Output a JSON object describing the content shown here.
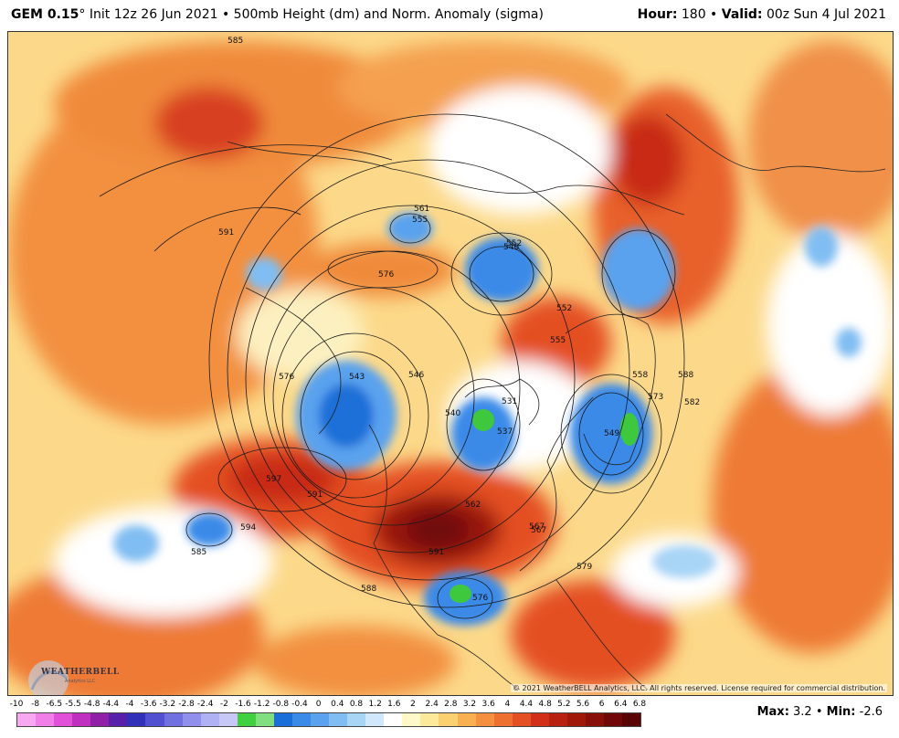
{
  "header": {
    "model": "GEM 0.15",
    "degree": "°",
    "init": " Init 12z 26 Jun 2021 • 500mb Height (dm) and Norm. Anomaly (sigma)",
    "hour_label": "Hour:",
    "hour_value": " 180 • ",
    "valid_label": "Valid:",
    "valid_value": " 00z Sun 4 Jul 2021"
  },
  "map": {
    "copyright": "© 2021 WeatherBELL Analytics, LLC. All rights reserved. License required for commercial distribution.",
    "logo_text": "WEATHERBELL",
    "logo_sub": "Analytics LLC",
    "contour_labels": [
      "585",
      "591",
      "576",
      "561",
      "555",
      "552",
      "546",
      "543",
      "549",
      "558",
      "573",
      "588",
      "597",
      "591",
      "594",
      "585",
      "576",
      "567",
      "562",
      "591",
      "579",
      "576",
      "588",
      "582",
      "540",
      "537",
      "531",
      "552",
      "555",
      "546",
      "567"
    ]
  },
  "legend": {
    "ticks": [
      "-10",
      "-8",
      "-6.5",
      "-5.5",
      "-4.8",
      "-4.4",
      "-4",
      "-3.6",
      "-3.2",
      "-2.8",
      "-2.4",
      "-2",
      "-1.6",
      "-1.2",
      "-0.8",
      "-0.4",
      "0",
      "0.4",
      "0.8",
      "1.2",
      "1.6",
      "2",
      "2.4",
      "2.8",
      "3.2",
      "3.6",
      "4",
      "4.4",
      "4.8",
      "5.2",
      "5.6",
      "6",
      "6.4",
      "6.8"
    ],
    "colors": [
      "#f8a8f0",
      "#f080e8",
      "#e050d8",
      "#c030c0",
      "#9020a8",
      "#5820a8",
      "#3030b8",
      "#5050d0",
      "#7070e0",
      "#9090ec",
      "#b0b0f4",
      "#c8c8f8",
      "#40d040",
      "#80e080",
      "#1a6fd8",
      "#3a8ae8",
      "#5aa2ee",
      "#80bdf2",
      "#a8d4f6",
      "#d0e8fa",
      "#ffffff",
      "#fff8c8",
      "#fde99a",
      "#fbd070",
      "#f8b050",
      "#f49040",
      "#ee7030",
      "#e45024",
      "#d03018",
      "#b82010",
      "#a01808",
      "#881008",
      "#700808",
      "#580404"
    ],
    "max_label": "Max:",
    "max_value": " 3.2",
    "sep": " • ",
    "min_label": "Min:",
    "min_value": " -2.6"
  }
}
